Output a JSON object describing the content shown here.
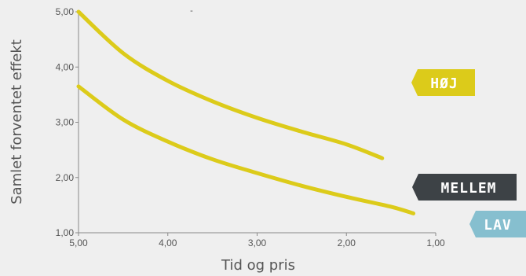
{
  "chart_data": {
    "type": "line",
    "xlabel": "Tid og pris",
    "ylabel": "Samlet forventet effekt",
    "xlim": [
      5.0,
      1.0
    ],
    "ylim": [
      1.0,
      5.0
    ],
    "x_ticks": [
      "5,00",
      "4,00",
      "3,00",
      "2,00",
      "1,00"
    ],
    "y_ticks": [
      "1,00",
      "2,00",
      "3,00",
      "4,00",
      "5,00"
    ],
    "annotation": "-",
    "series": [
      {
        "color": "#dccb1a",
        "x": [
          5.0,
          4.5,
          4.0,
          3.5,
          3.0,
          2.5,
          2.0,
          1.6
        ],
        "y": [
          5.0,
          4.25,
          3.75,
          3.38,
          3.08,
          2.83,
          2.6,
          2.35
        ]
      },
      {
        "color": "#dccb1a",
        "x": [
          5.0,
          4.5,
          4.0,
          3.5,
          3.0,
          2.5,
          2.0,
          1.5,
          1.25
        ],
        "y": [
          3.65,
          3.05,
          2.65,
          2.33,
          2.08,
          1.85,
          1.65,
          1.47,
          1.35
        ]
      }
    ],
    "labels": [
      {
        "text": "HØJ",
        "color": "#dccb1a"
      },
      {
        "text": "MELLEM",
        "color": "#3d4246"
      },
      {
        "text": "LAV",
        "color": "#86bfcf"
      }
    ]
  }
}
